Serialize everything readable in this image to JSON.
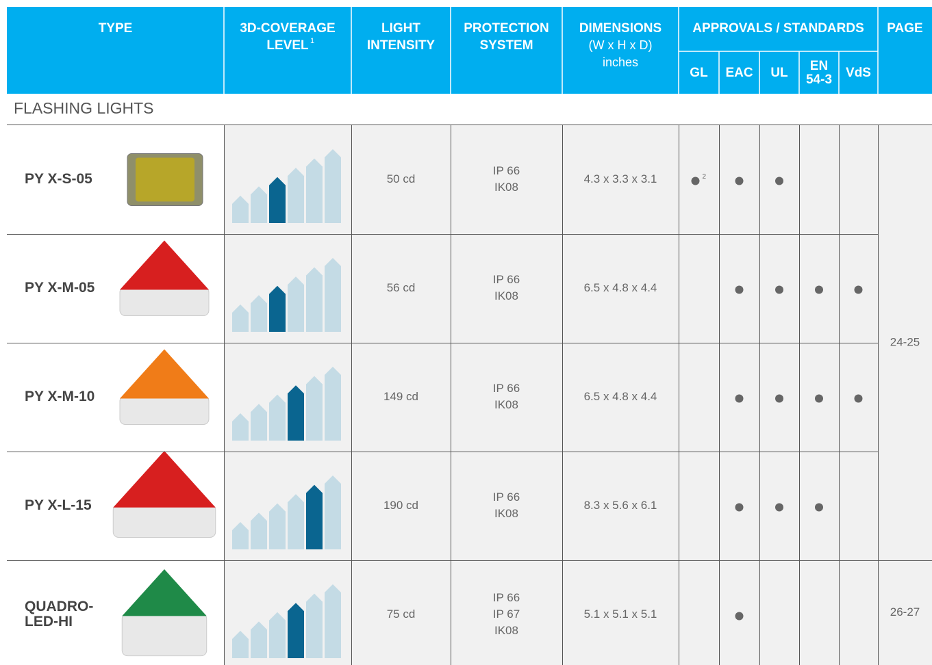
{
  "header": {
    "type": "TYPE",
    "coverage": [
      "3D-COVERAGE",
      "LEVEL"
    ],
    "coverage_footnote": "1",
    "intensity": [
      "LIGHT",
      "INTENSITY"
    ],
    "protection": [
      "PROTECTION",
      "SYSTEM"
    ],
    "dimensions": "DIMENSIONS",
    "dimensions_sub": [
      "(W x H x D)",
      "inches"
    ],
    "approvals": "APPROVALS / STANDARDS",
    "approval_columns": [
      [
        "GL"
      ],
      [
        "EAC"
      ],
      [
        "UL"
      ],
      [
        "EN",
        "54-3"
      ],
      [
        "VdS"
      ]
    ],
    "page": "PAGE"
  },
  "section": "FLASHING LIGHTS",
  "rows": [
    {
      "type": [
        "PY X-S-05"
      ],
      "coverage_level": 3,
      "intensity": "50 cd",
      "protection": [
        "IP 66",
        "IK08"
      ],
      "dimensions": "4.3 x 3.3 x 3.1",
      "approvals": [
        true,
        true,
        true,
        false,
        false
      ],
      "gl_footnote": "2"
    },
    {
      "type": [
        "PY X-M-05"
      ],
      "coverage_level": 3,
      "intensity": "56 cd",
      "protection": [
        "IP 66",
        "IK08"
      ],
      "dimensions": "6.5 x 4.8 x 4.4",
      "approvals": [
        false,
        true,
        true,
        true,
        true
      ]
    },
    {
      "type": [
        "PY X-M-10"
      ],
      "coverage_level": 4,
      "intensity": "149 cd",
      "protection": [
        "IP 66",
        "IK08"
      ],
      "dimensions": "6.5 x 4.8 x 4.4",
      "approvals": [
        false,
        true,
        true,
        true,
        true
      ]
    },
    {
      "type": [
        "PY X-L-15"
      ],
      "coverage_level": 5,
      "intensity": "190 cd",
      "protection": [
        "IP 66",
        "IK08"
      ],
      "dimensions": "8.3 x 5.6 x 6.1",
      "approvals": [
        false,
        true,
        true,
        true,
        false
      ]
    },
    {
      "type": [
        "QUADRO-",
        "LED-HI"
      ],
      "coverage_level": 4,
      "intensity": "75 cd",
      "protection": [
        "IP 66",
        "IP 67",
        "IK08"
      ],
      "dimensions": "5.1 x 5.1 x 5.1",
      "approvals": [
        false,
        true,
        false,
        false,
        false
      ]
    }
  ],
  "page_groups": [
    {
      "page": "24-25",
      "span": 4
    },
    {
      "page": "26-27",
      "span": 1
    }
  ]
}
